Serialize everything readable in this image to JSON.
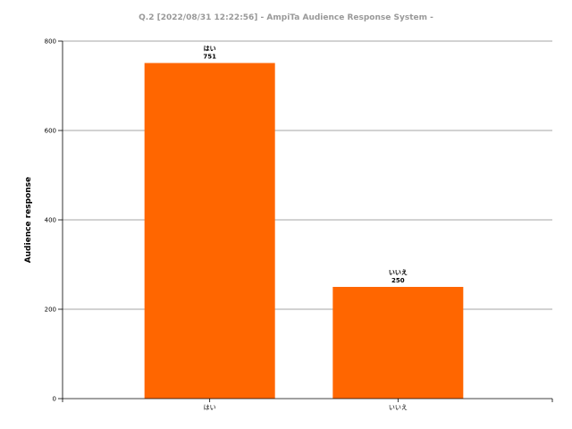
{
  "chart_data": {
    "type": "bar",
    "title": "Q.2  [2022/08/31 12:22:56]  - AmpiTa Audience Response System -",
    "xlabel": "",
    "ylabel": "Audience response",
    "categories": [
      "はい",
      "いいえ"
    ],
    "values": [
      751,
      250
    ],
    "ylim": [
      0,
      800
    ],
    "yticks": [
      0,
      200,
      400,
      600,
      800
    ],
    "grid": true,
    "legend": "none",
    "bar_color": "#ff6600"
  }
}
